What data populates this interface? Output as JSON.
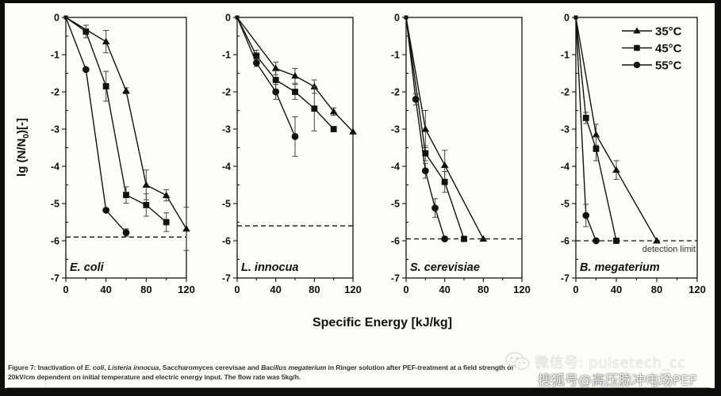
{
  "chart_data": {
    "type": "line",
    "shared_ylabel": "lg (N/N0)[-]",
    "shared_xlabel": "Specific Energy [kJ/kg]",
    "xlim": [
      0,
      120
    ],
    "ylim": [
      -7,
      0
    ],
    "x_ticks": [
      "0",
      "40",
      "80",
      "120"
    ],
    "y_ticks": [
      "0",
      "-1",
      "-2",
      "-3",
      "-4",
      "-5",
      "-6",
      "-7"
    ],
    "legend": {
      "placement": "top-right",
      "entries": [
        {
          "label": "35°C",
          "marker": "triangle"
        },
        {
          "label": "45°C",
          "marker": "square"
        },
        {
          "label": "55°C",
          "marker": "circle"
        }
      ]
    },
    "panels": [
      {
        "name": "E. coli",
        "detection_limit": -5.9,
        "series": [
          {
            "name": "35°C",
            "marker": "triangle",
            "x": [
              0,
              40,
              60,
              80,
              100,
              120
            ],
            "y": [
              0,
              -0.65,
              -1.97,
              -4.5,
              -4.78,
              -5.68
            ],
            "err": [
              0,
              0.3,
              0.08,
              0.4,
              0.15,
              0.58
            ]
          },
          {
            "name": "45°C",
            "marker": "square",
            "x": [
              0,
              20,
              40,
              60,
              80,
              100
            ],
            "y": [
              0,
              -0.38,
              -1.85,
              -4.77,
              -5.04,
              -5.5
            ],
            "err": [
              0,
              0.17,
              0.4,
              0.22,
              0.3,
              0.25
            ]
          },
          {
            "name": "55°C",
            "marker": "circle",
            "x": [
              0,
              20,
              40,
              60
            ],
            "y": [
              0,
              -1.4,
              -5.18,
              -5.78
            ],
            "err": [
              0,
              0,
              0,
              0.1
            ]
          }
        ]
      },
      {
        "name": "L. innocua",
        "detection_limit": -5.6,
        "series": [
          {
            "name": "35°C",
            "marker": "triangle",
            "x": [
              0,
              40,
              60,
              80,
              100,
              120
            ],
            "y": [
              0,
              -1.37,
              -1.57,
              -1.86,
              -2.53,
              -3.07
            ],
            "err": [
              0,
              0.17,
              0.2,
              0.18,
              0.1,
              0
            ]
          },
          {
            "name": "45°C",
            "marker": "square",
            "x": [
              0,
              20,
              40,
              60,
              80,
              100
            ],
            "y": [
              0,
              -1.03,
              -1.68,
              -2.0,
              -2.45,
              -3.0
            ],
            "err": [
              0,
              0.15,
              0.25,
              0.2,
              0.6,
              0
            ]
          },
          {
            "name": "55°C",
            "marker": "circle",
            "x": [
              0,
              20,
              40,
              60
            ],
            "y": [
              0,
              -1.22,
              -2.0,
              -3.2
            ],
            "err": [
              0,
              0.1,
              0.2,
              0.53
            ]
          }
        ]
      },
      {
        "name": "S. cerevisiae",
        "detection_limit": -5.95,
        "series": [
          {
            "name": "35°C",
            "marker": "triangle",
            "x": [
              0,
              20,
              40,
              80
            ],
            "y": [
              0,
              -3.0,
              -3.97,
              -5.95
            ],
            "err": [
              0,
              0.5,
              0.4,
              0
            ]
          },
          {
            "name": "45°C",
            "marker": "square",
            "x": [
              0,
              20,
              40,
              60
            ],
            "y": [
              0,
              -3.65,
              -4.42,
              -5.95
            ],
            "err": [
              0,
              0.2,
              0.28,
              0
            ]
          },
          {
            "name": "55°C",
            "marker": "circle",
            "x": [
              0,
              10,
              20,
              30,
              40
            ],
            "y": [
              0,
              -2.2,
              -4.12,
              -5.12,
              -5.95
            ],
            "err": [
              0,
              0.15,
              0.2,
              0.25,
              0
            ]
          }
        ]
      },
      {
        "name": "B. megaterium",
        "detection_limit": -6.0,
        "detection_label": "detection limit",
        "series": [
          {
            "name": "35°C",
            "marker": "triangle",
            "x": [
              0,
              20,
              40,
              80
            ],
            "y": [
              0,
              -3.15,
              -4.1,
              -6.0
            ],
            "err": [
              0,
              0.28,
              0.25,
              0
            ]
          },
          {
            "name": "45°C",
            "marker": "square",
            "x": [
              0,
              10,
              20,
              40
            ],
            "y": [
              0,
              -2.7,
              -3.53,
              -6.0
            ],
            "err": [
              0,
              0.15,
              0.32,
              0
            ]
          },
          {
            "name": "55°C",
            "marker": "circle",
            "x": [
              0,
              10,
              20
            ],
            "y": [
              0,
              -5.32,
              -6.0
            ],
            "err": [
              0,
              0.3,
              0
            ]
          }
        ]
      }
    ]
  },
  "caption": {
    "prefix": "Figure 7: Inactivation of ",
    "sp1": "E. coli",
    "t1": ", ",
    "sp2": "Listeria innocua",
    "t2": ", Saccharomyces cerevisae and ",
    "sp3": "Bacillus megaterium",
    "t3": " in Ringer solution after PEF-treatment at a field strength of 20kV/cm dependent on initial temperature and electric energy input. The flow rate was 5kg/h."
  },
  "watermark": {
    "line1": "微信号: pulsetech_cc",
    "line2": "搜狐号@高压脉冲电场PEF"
  },
  "colors": {
    "ink": "#111111",
    "background": "#fdfdfb",
    "frame": "#0d0d0d",
    "rule": "#6aa88a"
  }
}
